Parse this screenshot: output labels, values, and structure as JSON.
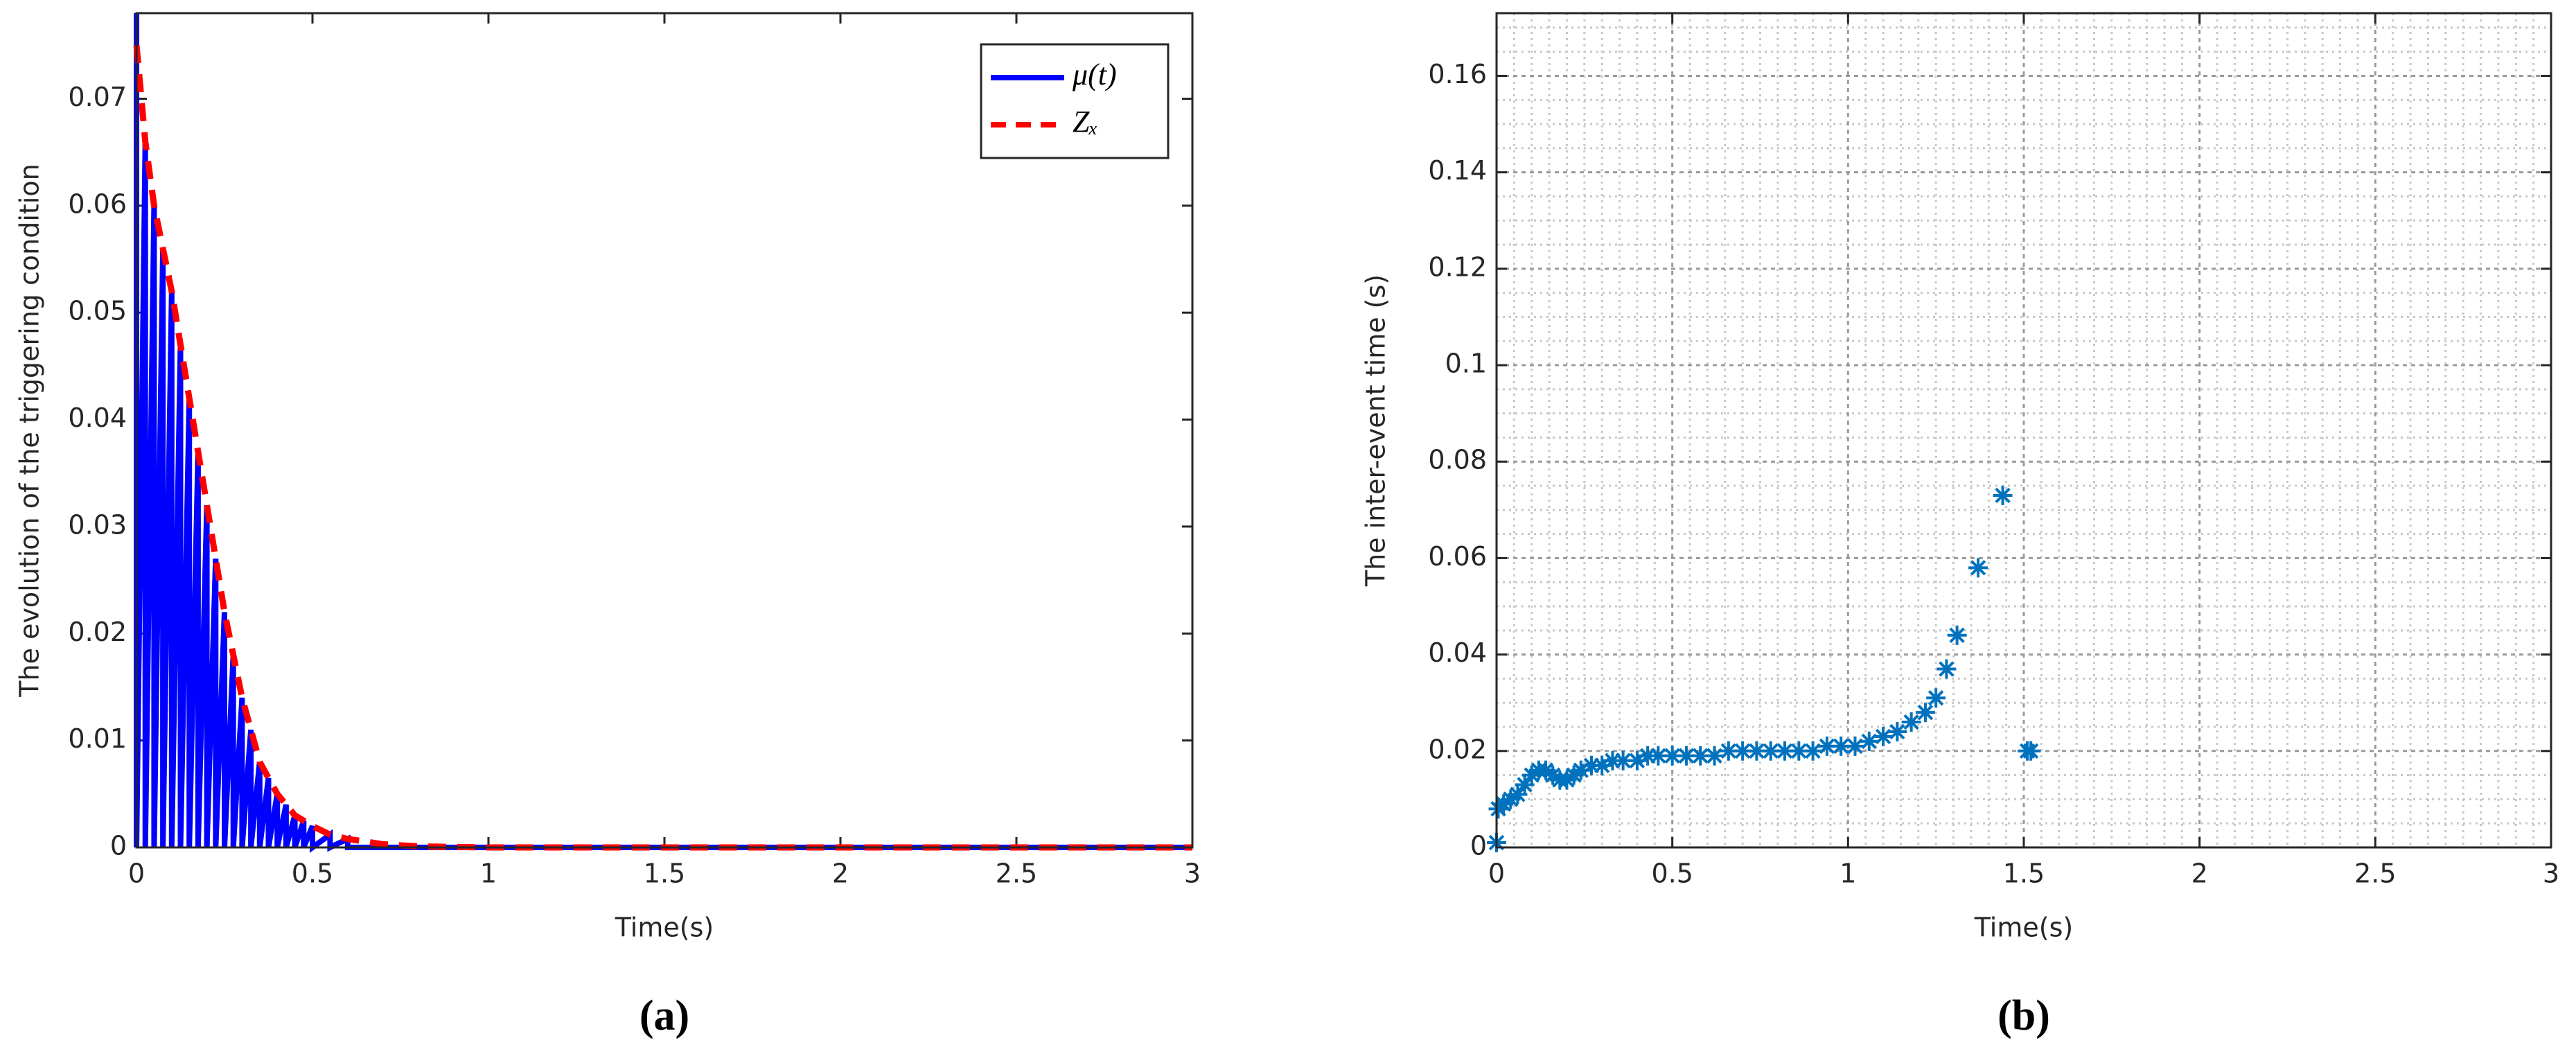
{
  "chart_data": [
    {
      "type": "line",
      "xlabel": "Time(s)",
      "ylabel": "The evolution of the triggering condition",
      "panel_label": "(a)",
      "xlim": [
        0,
        3
      ],
      "ylim": [
        0,
        0.078
      ],
      "xticks": [
        0,
        0.5,
        1,
        1.5,
        2,
        2.5,
        3
      ],
      "yticks": [
        0,
        0.01,
        0.02,
        0.03,
        0.04,
        0.05,
        0.06,
        0.07
      ],
      "grid": false,
      "legend": "northeast",
      "series": [
        {
          "name": "μ(t)",
          "color": "#0000ff",
          "line_style": "solid",
          "x": [
            0,
            0,
            0.025,
            0.025,
            0.05,
            0.05,
            0.075,
            0.075,
            0.1,
            0.1,
            0.125,
            0.125,
            0.15,
            0.15,
            0.175,
            0.175,
            0.2,
            0.2,
            0.225,
            0.225,
            0.25,
            0.25,
            0.275,
            0.275,
            0.3,
            0.3,
            0.325,
            0.325,
            0.35,
            0.35,
            0.375,
            0.375,
            0.4,
            0.4,
            0.425,
            0.425,
            0.45,
            0.45,
            0.475,
            0.475,
            0.5,
            0.5,
            0.55,
            0.55,
            0.6,
            0.6,
            3
          ],
          "values": [
            0.078,
            0,
            0.066,
            0,
            0.06,
            0,
            0.056,
            0,
            0.052,
            0,
            0.047,
            0,
            0.042,
            0,
            0.037,
            0,
            0.032,
            0,
            0.027,
            0,
            0.022,
            0,
            0.018,
            0,
            0.014,
            0,
            0.011,
            0,
            0.008,
            0,
            0.0065,
            0,
            0.005,
            0,
            0.004,
            0,
            0.003,
            0,
            0.0025,
            0,
            0.002,
            0,
            0.0012,
            0,
            0.0008,
            0,
            0
          ]
        },
        {
          "name": "Zₓ",
          "color": "#ff0000",
          "line_style": "dashed",
          "x": [
            0,
            0.025,
            0.05,
            0.075,
            0.1,
            0.125,
            0.15,
            0.175,
            0.2,
            0.225,
            0.25,
            0.275,
            0.3,
            0.325,
            0.35,
            0.375,
            0.4,
            0.425,
            0.45,
            0.475,
            0.5,
            0.55,
            0.6,
            0.7,
            0.8,
            1,
            3
          ],
          "values": [
            0.075,
            0.066,
            0.06,
            0.056,
            0.052,
            0.047,
            0.042,
            0.037,
            0.032,
            0.027,
            0.022,
            0.018,
            0.014,
            0.011,
            0.008,
            0.0065,
            0.005,
            0.004,
            0.003,
            0.0025,
            0.002,
            0.0012,
            0.0008,
            0.0003,
            0.0001,
            0,
            0
          ]
        }
      ]
    },
    {
      "type": "scatter",
      "xlabel": "Time(s)",
      "ylabel": "The inter-event time (s)",
      "panel_label": "(b)",
      "xlim": [
        0,
        3
      ],
      "ylim": [
        0,
        0.173
      ],
      "xticks": [
        0,
        0.5,
        1,
        1.5,
        2,
        2.5,
        3
      ],
      "yticks": [
        0,
        0.02,
        0.04,
        0.06,
        0.08,
        0.1,
        0.12,
        0.14,
        0.16
      ],
      "grid": true,
      "minor_grid": true,
      "series": [
        {
          "color": "#0072bd",
          "marker": "asterisk",
          "x": [
            0,
            0.005,
            0.02,
            0.04,
            0.06,
            0.08,
            0.1,
            0.12,
            0.14,
            0.16,
            0.18,
            0.2,
            0.22,
            0.24,
            0.27,
            0.3,
            0.33,
            0.36,
            0.4,
            0.43,
            0.46,
            0.5,
            0.54,
            0.58,
            0.62,
            0.66,
            0.7,
            0.74,
            0.78,
            0.82,
            0.86,
            0.9,
            0.94,
            0.98,
            1.02,
            1.06,
            1.1,
            1.14,
            1.18,
            1.22,
            1.25,
            1.28,
            1.31,
            1.37,
            1.44,
            1.51,
            1.52
          ],
          "values": [
            0.001,
            0.008,
            0.009,
            0.01,
            0.011,
            0.013,
            0.015,
            0.016,
            0.016,
            0.015,
            0.014,
            0.014,
            0.015,
            0.016,
            0.017,
            0.017,
            0.018,
            0.018,
            0.018,
            0.019,
            0.019,
            0.019,
            0.019,
            0.019,
            0.019,
            0.02,
            0.02,
            0.02,
            0.02,
            0.02,
            0.02,
            0.02,
            0.021,
            0.021,
            0.021,
            0.022,
            0.023,
            0.024,
            0.026,
            0.028,
            0.031,
            0.037,
            0.044,
            0.058,
            0.073,
            0.02,
            0.02
          ]
        }
      ]
    }
  ]
}
